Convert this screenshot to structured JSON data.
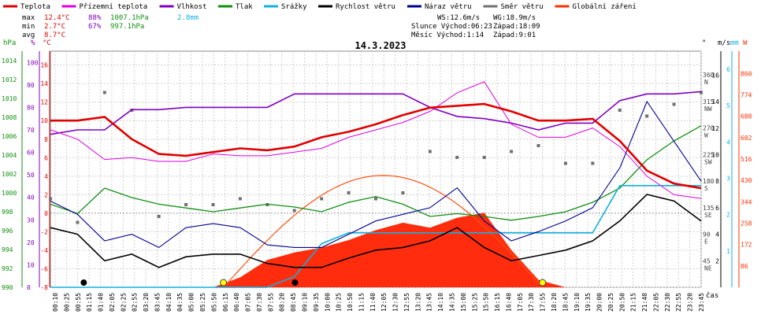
{
  "chart_data": {
    "type": "line",
    "title": "14.3.2023",
    "legend": [
      {
        "label": "Teplota",
        "color": "#e00000"
      },
      {
        "label": "Přízemní teplota",
        "color": "#e000e0"
      },
      {
        "label": "Vlhkost",
        "color": "#8000c0"
      },
      {
        "label": "Tlak",
        "color": "#109010"
      },
      {
        "label": "Srážky",
        "color": "#10b0e0"
      },
      {
        "label": "Rychlost větru",
        "color": "#000000"
      },
      {
        "label": "Náraz větru",
        "color": "#000090"
      },
      {
        "label": "Směr větru",
        "color": "#707070"
      },
      {
        "label": "Globální záření",
        "color": "#ff3000"
      }
    ],
    "stats": [
      {
        "label": "max",
        "temp": "12.4°C",
        "hum": "88%",
        "press": "1007.1hPa",
        "rain": "2.8mm"
      },
      {
        "label": "min",
        "temp": "2.7°C",
        "hum": "67%",
        "press": "997.1hPa",
        "rain": ""
      },
      {
        "label": "avg",
        "temp": "8.7°C",
        "hum": "",
        "press": "",
        "rain": ""
      }
    ],
    "info": {
      "ws": "WS:12.6m/s",
      "wg": "WG:18.9m/s",
      "sun": "Slunce Východ:06:23",
      "sun_set": "Západ:18:09",
      "moon": "Měsíc  Východ:1:14",
      "moon_set": "Západ:9:01"
    },
    "axes": {
      "hpa_unit": "hPa",
      "pct_unit": "%",
      "temp_unit": "°C",
      "hpa_ticks": [
        "1014",
        "1012",
        "1010",
        "1008",
        "1006",
        "1004",
        "1002",
        "1000",
        "998",
        "996",
        "994",
        "992",
        "990"
      ],
      "pct_ticks": [
        "100",
        "90",
        "80",
        "70",
        "60",
        "50",
        "40",
        "30",
        "20",
        "10",
        "0"
      ],
      "temp_ticks": [
        "16",
        "14",
        "12",
        "10",
        "8",
        "6",
        "4",
        "2",
        "0",
        "-2",
        "-4",
        "-6",
        "-8"
      ],
      "dir_unit": "°",
      "dir_ticks": [
        {
          "deg": "360",
          "name": "N"
        },
        {
          "deg": "315",
          "name": "NW"
        },
        {
          "deg": "270",
          "name": "W"
        },
        {
          "deg": "225",
          "name": "SW"
        },
        {
          "deg": "180",
          "name": "S"
        },
        {
          "deg": "135",
          "name": "SE"
        },
        {
          "deg": "90",
          "name": "E"
        },
        {
          "deg": "45",
          "name": "NE"
        }
      ],
      "ms_unit": "m/s",
      "ms_ticks": [
        "16",
        "14",
        "12",
        "10",
        "8",
        "6",
        "4",
        "2"
      ],
      "mm_unit": "mm",
      "mm_ticks": [
        "6",
        "5",
        "4",
        "3",
        "2",
        "1"
      ],
      "w_unit": "W",
      "w_ticks": [
        "860",
        "774",
        "688",
        "602",
        "516",
        "430",
        "344",
        "258",
        "172",
        "86"
      ],
      "time_unit": "čas",
      "time_labels": [
        "00:10",
        "00:25",
        "00:55",
        "01:15",
        "01:40",
        "02:05",
        "02:25",
        "02:55",
        "03:20",
        "03:45",
        "04:10",
        "04:35",
        "05:00",
        "05:25",
        "05:50",
        "06:15",
        "06:40",
        "07:05",
        "07:30",
        "07:55",
        "08:20",
        "08:45",
        "09:10",
        "09:35",
        "10:00",
        "10:25",
        "10:50",
        "11:15",
        "11:40",
        "12:05",
        "12:30",
        "12:55",
        "13:20",
        "13:45",
        "14:10",
        "14:35",
        "15:00",
        "15:25",
        "15:50",
        "16:15",
        "16:40",
        "17:05",
        "17:30",
        "17:55",
        "18:20",
        "18:45",
        "19:10",
        "19:35",
        "20:00",
        "20:25",
        "20:50",
        "21:15",
        "21:40",
        "22:05",
        "22:30",
        "22:55",
        "23:20",
        "23:45"
      ]
    },
    "x_hours": [
      0,
      1,
      2,
      3,
      4,
      5,
      6,
      7,
      8,
      9,
      10,
      11,
      12,
      13,
      14,
      15,
      16,
      17,
      18,
      19,
      20,
      21,
      22,
      23,
      24
    ],
    "series": [
      {
        "name": "Teplota",
        "unit": "°C",
        "values": [
          10,
          10,
          10.4,
          8,
          6.4,
          6.2,
          6.6,
          7,
          6.8,
          7.2,
          8.2,
          8.8,
          9.6,
          10.6,
          11.4,
          11.6,
          11.8,
          11,
          10,
          10,
          10.2,
          7.8,
          4.6,
          3.2,
          2.7
        ]
      },
      {
        "name": "Přízemní teplota",
        "unit": "°C",
        "values": [
          9,
          8,
          5.8,
          6,
          5.6,
          5.6,
          6.4,
          6.2,
          6.2,
          6.6,
          7,
          8.2,
          9,
          9.8,
          11,
          13,
          14.2,
          9.6,
          8.2,
          8.2,
          9.2,
          7.2,
          4,
          2,
          1.6
        ]
      },
      {
        "name": "Vlhkost",
        "unit": "%",
        "values": [
          68,
          70,
          70,
          79,
          79,
          80,
          80,
          80,
          80,
          86,
          86,
          86,
          86,
          86,
          80,
          76,
          75,
          73,
          70,
          73,
          73,
          83,
          86,
          86,
          87
        ]
      },
      {
        "name": "Tlak",
        "unit": "hPa",
        "values": [
          998.8,
          997.8,
          1000.5,
          999.5,
          998.8,
          998.4,
          998.0,
          998.4,
          998.8,
          998.5,
          998.0,
          999.0,
          999.6,
          998.8,
          997.5,
          997.8,
          997.5,
          997.1,
          997.5,
          998.0,
          999.0,
          1000.5,
          1003.5,
          1005.5,
          1007.1
        ]
      },
      {
        "name": "Srážky",
        "unit": "mm",
        "values": [
          0,
          0,
          0,
          0,
          0,
          0,
          0,
          0,
          0,
          0.3,
          1.2,
          1.5,
          1.5,
          1.5,
          1.5,
          1.5,
          1.5,
          1.5,
          1.5,
          1.5,
          1.5,
          2.8,
          2.8,
          2.8,
          2.8
        ]
      },
      {
        "name": "Rychlost větru",
        "unit": "m/s",
        "values": [
          4.5,
          4,
          2,
          2.5,
          1.5,
          2.3,
          2.5,
          2.5,
          1.8,
          1.5,
          1.5,
          2.2,
          2.8,
          3,
          3.5,
          4.5,
          3,
          2,
          2.4,
          2.8,
          3.5,
          5,
          7,
          6.5,
          5
        ]
      },
      {
        "name": "Náraz větru",
        "unit": "m/s",
        "values": [
          6.5,
          5.5,
          3.5,
          4,
          3,
          4.5,
          4.8,
          4.5,
          3.2,
          3,
          3,
          4,
          5,
          5.5,
          6,
          7.5,
          5,
          3.5,
          4.2,
          5,
          6,
          9,
          14,
          11,
          8
        ]
      },
      {
        "name": "Globální záření",
        "unit": "W",
        "values": [
          0,
          0,
          0,
          0,
          0,
          0,
          0,
          40,
          110,
          140,
          160,
          190,
          230,
          260,
          240,
          280,
          300,
          150,
          30,
          0,
          0,
          0,
          0,
          0,
          0
        ]
      },
      {
        "name": "Směr větru",
        "unit": "°",
        "values": [
          150,
          110,
          330,
          300,
          120,
          140,
          140,
          150,
          140,
          130,
          150,
          160,
          150,
          160,
          230,
          220,
          220,
          230,
          240,
          210,
          210,
          300,
          290,
          310,
          330
        ]
      }
    ],
    "radiation_theoretical": {
      "start_hour": 6.38,
      "end_hour": 18.15,
      "peak": 450
    }
  }
}
